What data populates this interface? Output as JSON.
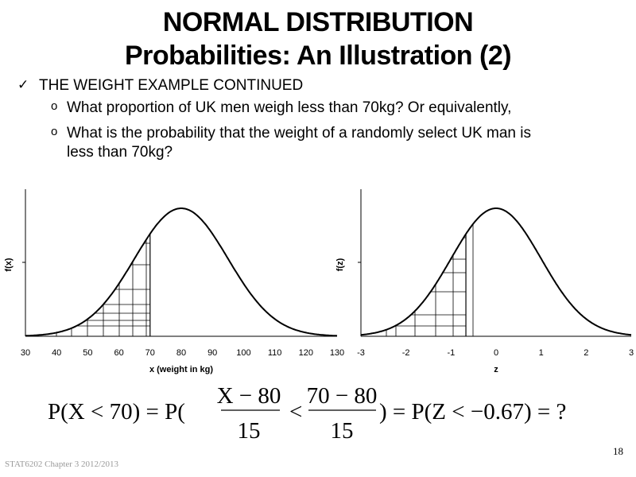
{
  "title_line1": "NORMAL DISTRIBUTION",
  "title_line2": "Probabilities: An Illustration (2)",
  "bullets": {
    "main": "THE WEIGHT EXAMPLE CONTINUED",
    "sub1": "What proportion of UK men weigh less than 70kg? Or equivalently,",
    "sub2_line1": "What is the probability that the weight of a randomly select UK man is",
    "sub2_line2": "less than 70kg?"
  },
  "icons": {
    "check": "checkmark-icon",
    "sub": "hollow-circle-bullet-icon"
  },
  "chart_data": [
    {
      "type": "area",
      "distribution": "normal",
      "mean": 80,
      "sd": 15,
      "shaded_region": {
        "to": 70
      },
      "xlabel": "x (weight in kg)",
      "ylabel": "f(x)",
      "xlim": [
        30,
        130
      ],
      "xticks": [
        "30",
        "40",
        "50",
        "60",
        "70",
        "80",
        "90",
        "100",
        "110",
        "120",
        "130"
      ],
      "grid": false
    },
    {
      "type": "area",
      "distribution": "standard normal",
      "mean": 0,
      "sd": 1,
      "shaded_region": {
        "to": -0.67
      },
      "xlabel": "z",
      "ylabel": "f(z)",
      "xlim": [
        -3,
        3
      ],
      "xticks": [
        "-3",
        "-2",
        "-1",
        "0",
        "1",
        "2",
        "3"
      ],
      "grid": false
    }
  ],
  "equation": {
    "p1": "P(X < 70) = P(",
    "num1": "X − 80",
    "den1": "15",
    "lt": "<",
    "num2": "70 − 80",
    "den2": "15",
    "p2": ") = P(Z < −0.67) = ?"
  },
  "footer": "STAT6202 Chapter 3 2012/2013",
  "page_number": "18"
}
